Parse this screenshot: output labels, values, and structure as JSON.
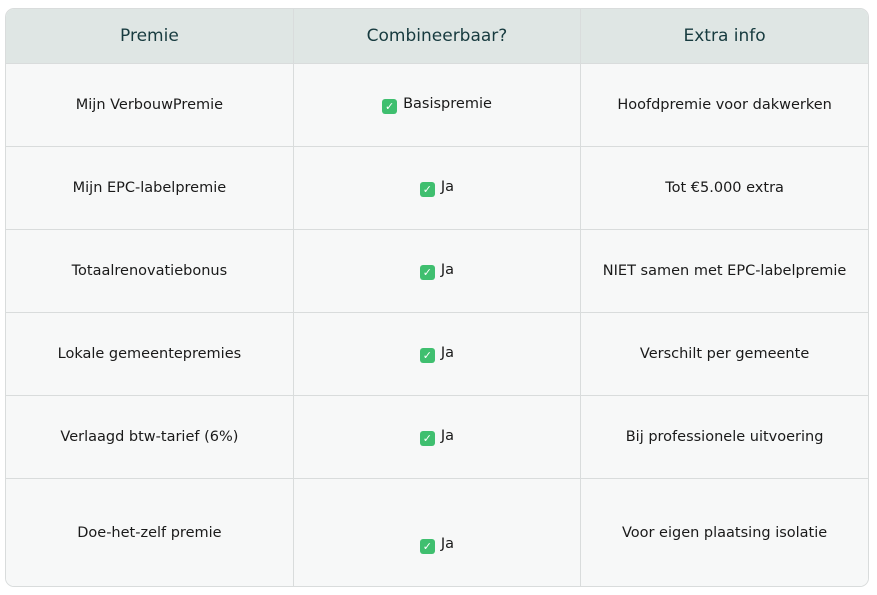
{
  "headers": [
    "Premie",
    "Combineerbaar?",
    "Extra info"
  ],
  "rows": [
    {
      "premie": "Mijn VerbouwPremie",
      "combineerbaar": "Basispremie",
      "info": "Hoofdpremie voor dakwerken"
    },
    {
      "premie": "Mijn EPC-labelpremie",
      "combineerbaar": "Ja",
      "info": "Tot €5.000 extra"
    },
    {
      "premie": "Totaalrenovatiebonus",
      "combineerbaar": "Ja",
      "info": "NIET samen met EPC-labelpremie"
    },
    {
      "premie": "Lokale gemeentepremies",
      "combineerbaar": "Ja",
      "info": "Verschilt per gemeente"
    },
    {
      "premie": "Verlaagd btw-tarief (6%)",
      "combineerbaar": "Ja",
      "info": "Bij professionele uitvoering"
    },
    {
      "premie": "Doe-het-zelf premie",
      "combineerbaar": "Ja",
      "info": "Voor eigen plaatsing isolatie"
    }
  ],
  "icons": {
    "check": "check-box-icon"
  },
  "colors": {
    "header_bg": "#dfe6e4",
    "header_text": "#173b3f",
    "check": "#3fbf6f"
  }
}
